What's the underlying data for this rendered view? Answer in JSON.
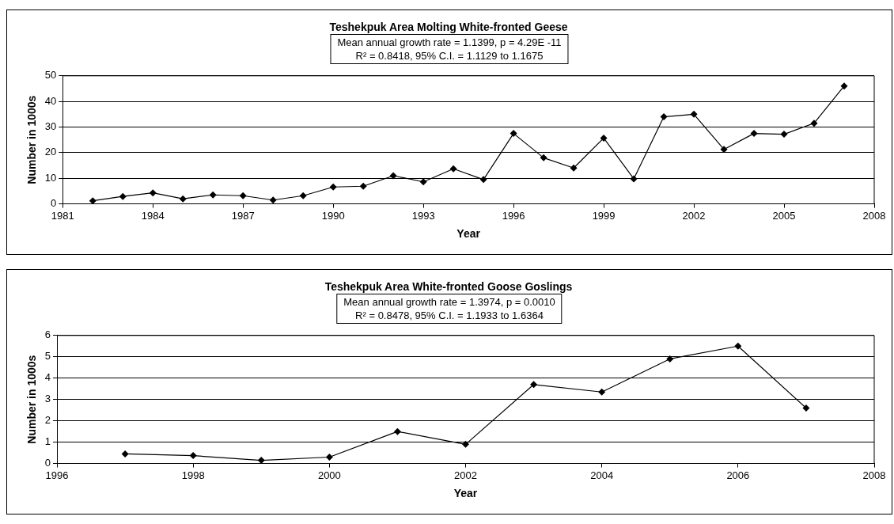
{
  "chart_data": [
    {
      "type": "line",
      "title": "Teshekpuk Area Molting White-fronted Geese",
      "xlabel": "Year",
      "ylabel": "Number in 1000s",
      "annotations": [
        "Mean annual growth rate = 1.1399, p = 4.29E -11",
        "R² = 0.8418, 95% C.I. = 1.1129 to 1.1675"
      ],
      "x": [
        1982,
        1983,
        1984,
        1985,
        1986,
        1987,
        1988,
        1989,
        1990,
        1991,
        1992,
        1993,
        1994,
        1995,
        1996,
        1997,
        1998,
        1999,
        2000,
        2001,
        2002,
        2003,
        2004,
        2005,
        2006,
        2007
      ],
      "series": [
        {
          "color": "#000000",
          "values": [
            1.2,
            2.9,
            4.3,
            2.0,
            3.5,
            3.2,
            1.5,
            3.2,
            6.6,
            6.9,
            11,
            8.6,
            13.7,
            9.5,
            27.5,
            18,
            14,
            25.7,
            9.8,
            34,
            35,
            21.3,
            27.5,
            27.2,
            31.5,
            46
          ]
        }
      ],
      "xlim": [
        1981,
        2008
      ],
      "xticks": [
        1981,
        1984,
        1987,
        1990,
        1993,
        1996,
        1999,
        2002,
        2005,
        2008
      ],
      "ylim": [
        0,
        50
      ],
      "yticks": [
        0,
        10,
        20,
        30,
        40,
        50
      ],
      "grid": "y",
      "legend": false,
      "marker": "diamond",
      "line_style": "solid"
    },
    {
      "type": "line",
      "title": "Teshekpuk Area White-fronted Goose Goslings",
      "xlabel": "Year",
      "ylabel": "Number in 1000s",
      "annotations": [
        "Mean annual growth rate = 1.3974, p = 0.0010",
        "R² = 0.8478, 95% C.I. = 1.1933 to 1.6364"
      ],
      "x": [
        1997,
        1998,
        1999,
        2000,
        2001,
        2002,
        2003,
        2004,
        2005,
        2006,
        2007
      ],
      "series": [
        {
          "color": "#000000",
          "values": [
            0.45,
            0.37,
            0.15,
            0.3,
            1.5,
            0.9,
            3.7,
            3.35,
            4.9,
            5.5,
            2.6
          ]
        }
      ],
      "xlim": [
        1996,
        2008
      ],
      "xticks": [
        1996,
        1998,
        2000,
        2002,
        2004,
        2006,
        2008
      ],
      "ylim": [
        0,
        6
      ],
      "yticks": [
        0,
        1,
        2,
        3,
        4,
        5,
        6
      ],
      "grid": "y",
      "legend": false,
      "marker": "diamond",
      "line_style": "solid"
    }
  ]
}
